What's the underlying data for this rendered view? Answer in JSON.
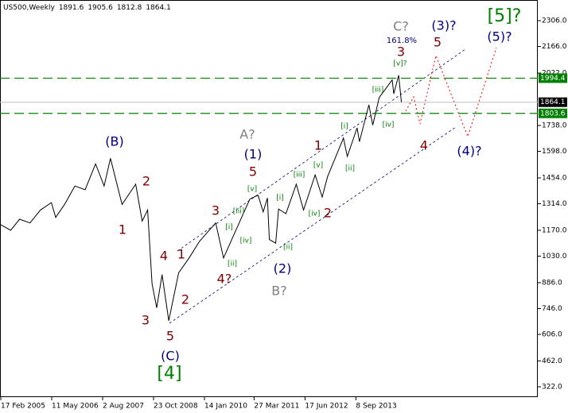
{
  "chart_data": {
    "type": "line",
    "title": "US500,Weekly",
    "ohlc": [
      1891.6,
      1905.6,
      1812.8,
      1864.1
    ],
    "series": [
      {
        "color": "#000000",
        "x": [
          "2005-02-17",
          "2005-05-15",
          "2005-08-01",
          "2005-11-01",
          "2006-02-01",
          "2006-05-08",
          "2006-06-15",
          "2006-09-01",
          "2006-12-01",
          "2007-03-01",
          "2007-06-01",
          "2007-08-15",
          "2007-10-10",
          "2008-01-20",
          "2008-05-19",
          "2008-07-15",
          "2008-09-01",
          "2008-10-10",
          "2008-11-20",
          "2009-01-06",
          "2009-03-06",
          "2009-06-01",
          "2009-09-01",
          "2009-12-01",
          "2010-04-23",
          "2010-07-01",
          "2010-11-01",
          "2011-02-18",
          "2011-05-01",
          "2011-06-15",
          "2011-07-22",
          "2011-08-08",
          "2011-10-03",
          "2011-10-28",
          "2012-01-01",
          "2012-04-01",
          "2012-06-04",
          "2012-09-14",
          "2012-11-15",
          "2013-01-01",
          "2013-05-21",
          "2013-06-24",
          "2013-09-18",
          "2013-10-09",
          "2013-12-31",
          "2014-02-03",
          "2014-04-01",
          "2014-07-24",
          "2014-08-07",
          "2014-09-19",
          "2014-10-13"
        ],
        "values": [
          1200,
          1170,
          1230,
          1210,
          1280,
          1320,
          1240,
          1310,
          1410,
          1390,
          1530,
          1410,
          1560,
          1310,
          1420,
          1220,
          1280,
          880,
          750,
          930,
          680,
          940,
          1020,
          1110,
          1210,
          1020,
          1190,
          1340,
          1360,
          1270,
          1345,
          1120,
          1100,
          1285,
          1260,
          1420,
          1280,
          1470,
          1350,
          1460,
          1670,
          1570,
          1725,
          1650,
          1850,
          1740,
          1890,
          1985,
          1910,
          2010,
          1864
        ]
      }
    ],
    "xlim": [
      "2005-02-10",
      "2018-01-25"
    ],
    "xticks": [
      {
        "value": "2005-02-17",
        "label": "17 Feb 2005"
      },
      {
        "value": "2006-05-11",
        "label": "11 May 2006"
      },
      {
        "value": "2007-08-02",
        "label": "2 Aug 2007"
      },
      {
        "value": "2008-10-23",
        "label": "23 Oct 2008"
      },
      {
        "value": "2010-01-14",
        "label": "14 Jan 2010"
      },
      {
        "value": "2011-03-27",
        "label": "27 Mar 2011"
      },
      {
        "value": "2012-06-17",
        "label": "17 Jun 2012"
      },
      {
        "value": "2013-09-08",
        "label": "8 Sep 2013"
      }
    ],
    "ylim": [
      266,
      2418
    ],
    "yticks": [
      {
        "value": 2306,
        "label": "2306.0"
      },
      {
        "value": 2166,
        "label": "2166.0"
      },
      {
        "value": 2022,
        "label": "2022.0"
      },
      {
        "value": 1738,
        "label": "1738.0"
      },
      {
        "value": 1598,
        "label": "1598.0"
      },
      {
        "value": 1454,
        "label": "1454.0"
      },
      {
        "value": 1314,
        "label": "1314.0"
      },
      {
        "value": 1170,
        "label": "1170.0"
      },
      {
        "value": 1030,
        "label": "1030.0"
      },
      {
        "value": 886,
        "label": "886.0"
      },
      {
        "value": 746,
        "label": "746.0"
      },
      {
        "value": 606,
        "label": "606.0"
      },
      {
        "value": 462,
        "label": "462.0"
      },
      {
        "value": 322,
        "label": "322.0"
      }
    ],
    "levels": [
      {
        "value": 1994.4,
        "color": "#008000"
      },
      {
        "value": 1864.1,
        "color": "#000000"
      },
      {
        "value": 1803.6,
        "color": "#008000"
      }
    ],
    "annotations": [
      {
        "text": "(B)",
        "color": "#000080"
      },
      {
        "text": "2",
        "color": "#800000"
      },
      {
        "text": "1",
        "color": "#800000"
      },
      {
        "text": "4",
        "color": "#800000"
      },
      {
        "text": "1",
        "color": "#800000"
      },
      {
        "text": "3",
        "color": "#800000"
      },
      {
        "text": "2",
        "color": "#800000"
      },
      {
        "text": "5",
        "color": "#800000"
      },
      {
        "text": "(C)",
        "color": "#000080"
      },
      {
        "text": "[4]",
        "color": "#008000"
      },
      {
        "text": "3",
        "color": "#800000"
      },
      {
        "text": "4?",
        "color": "#800000"
      },
      {
        "text": "[i]",
        "color": "#008000"
      },
      {
        "text": "[ii]",
        "color": "#008000"
      },
      {
        "text": "[iii]",
        "color": "#008000"
      },
      {
        "text": "[iv]",
        "color": "#008000"
      },
      {
        "text": "[v]",
        "color": "#008000"
      },
      {
        "text": "A?",
        "color": "#808080"
      },
      {
        "text": "(1)",
        "color": "#000080"
      },
      {
        "text": "5",
        "color": "#800000"
      },
      {
        "text": "[i]",
        "color": "#008000"
      },
      {
        "text": "[ii]",
        "color": "#008000"
      },
      {
        "text": "(2)",
        "color": "#000080"
      },
      {
        "text": "B?",
        "color": "#808080"
      },
      {
        "text": "[iii]",
        "color": "#008000"
      },
      {
        "text": "[iv]",
        "color": "#008000"
      },
      {
        "text": "[v]",
        "color": "#008000"
      },
      {
        "text": "1",
        "color": "#800000"
      },
      {
        "text": "2",
        "color": "#800000"
      },
      {
        "text": "[i]",
        "color": "#008000"
      },
      {
        "text": "[ii]",
        "color": "#008000"
      },
      {
        "text": "[iii]",
        "color": "#008000"
      },
      {
        "text": "[iv]",
        "color": "#008000"
      },
      {
        "text": "[v]?",
        "color": "#008000"
      },
      {
        "text": "C?",
        "color": "#808080"
      },
      {
        "text": "161.8%",
        "color": "#000080"
      },
      {
        "text": "3",
        "color": "#800000"
      },
      {
        "text": "(3)?",
        "color": "#000080"
      },
      {
        "text": "5",
        "color": "#800000"
      },
      {
        "text": "4",
        "color": "#800000"
      },
      {
        "text": "(4)?",
        "color": "#000080"
      },
      {
        "text": "[5]?",
        "color": "#008000"
      },
      {
        "text": "(5)?",
        "color": "#000080"
      }
    ]
  }
}
